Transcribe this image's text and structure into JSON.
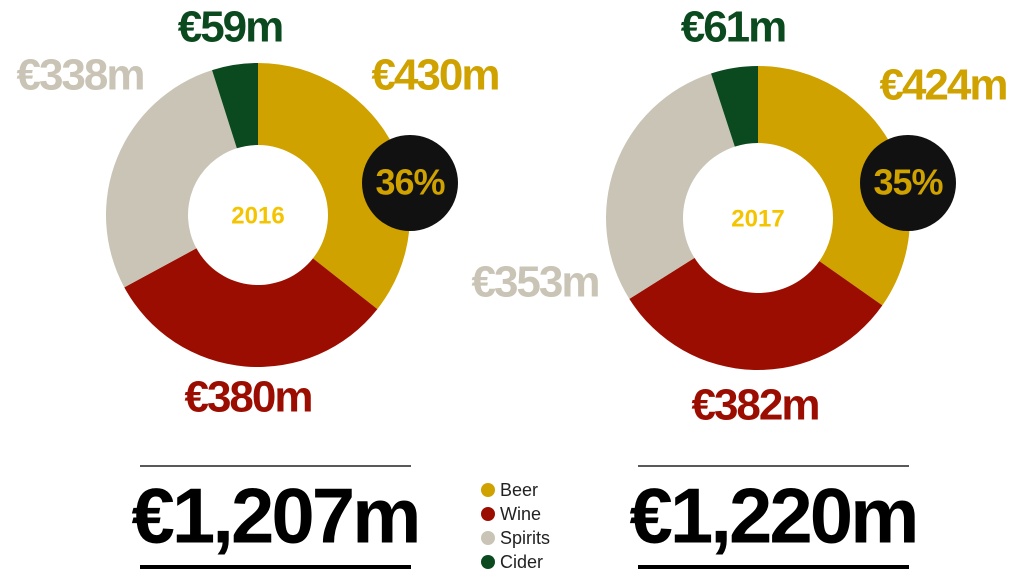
{
  "chart_data": [
    {
      "type": "donut",
      "title": "2016",
      "categories": [
        "Beer",
        "Wine",
        "Spirits",
        "Cider"
      ],
      "values": [
        430,
        380,
        338,
        59
      ],
      "value_labels": [
        "€430m",
        "€380m",
        "€338m",
        "€59m"
      ],
      "colors": [
        "#cfa200",
        "#9b0d00",
        "#c9c4b5",
        "#0b4a1e"
      ],
      "annotation": "36%",
      "total": "€1,207m"
    },
    {
      "type": "donut",
      "title": "2017",
      "categories": [
        "Beer",
        "Wine",
        "Spirits",
        "Cider"
      ],
      "values": [
        424,
        382,
        353,
        61
      ],
      "value_labels": [
        "€424m",
        "€382m",
        "€353m",
        "€61m"
      ],
      "colors": [
        "#cfa200",
        "#9b0d00",
        "#c9c4b5",
        "#0b4a1e"
      ],
      "annotation": "35%",
      "total": "€1,220m"
    }
  ]
}
